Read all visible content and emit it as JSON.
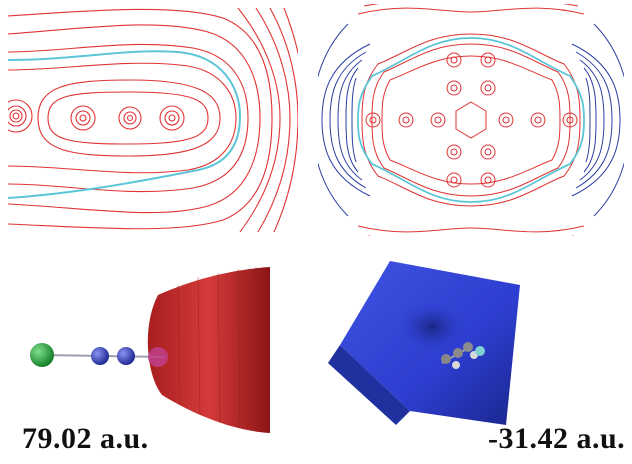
{
  "labels": {
    "left": "79.02 a.u.",
    "right": "-31.42 a.u."
  },
  "colors": {
    "contour_red": "#e03333",
    "contour_blue": "#2c3fa0",
    "isoline_cyan": "#5cc6d8",
    "surface_red": "#c42a2a",
    "surface_blue": "#2d3ed0",
    "atom_green": "#1fa33a",
    "atom_blue": "#2a35b5",
    "atom_magenta": "#c0408a"
  }
}
